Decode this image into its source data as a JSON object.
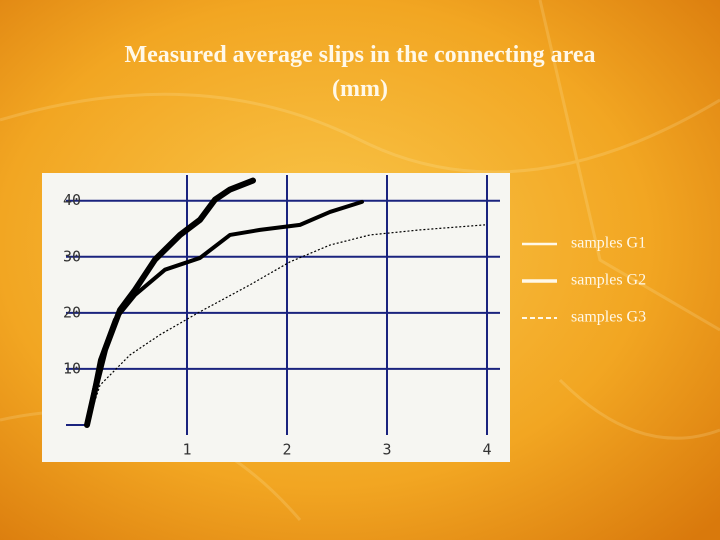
{
  "chart_data": {
    "type": "line",
    "title": "Measured average slips in the connecting area",
    "subtitle": "(mm)",
    "xlim": [
      0,
      4.13
    ],
    "ylim": [
      0,
      43.7
    ],
    "xticks": [
      1,
      2,
      3,
      4
    ],
    "yticks": [
      10,
      20,
      30,
      40
    ],
    "grid": true,
    "grid_color": "#1a237e",
    "legend": "right",
    "series": [
      {
        "name": "samples G1",
        "color": "#000000",
        "line_width": 4,
        "dashed": false,
        "x": [
          0,
          0.13,
          0.28,
          0.48,
          0.78,
          1.13,
          1.43,
          1.73,
          2.13,
          2.43,
          2.75
        ],
        "values": [
          0,
          11.6,
          18.8,
          23.2,
          27.7,
          29.8,
          33.9,
          34.8,
          35.7,
          38,
          39.8
        ]
      },
      {
        "name": "samples G2",
        "color": "#000000",
        "line_width": 6,
        "dashed": false,
        "x": [
          0,
          0.08,
          0.18,
          0.33,
          0.48,
          0.68,
          0.93,
          1.13,
          1.28,
          1.43,
          1.66
        ],
        "values": [
          0,
          6.3,
          13.4,
          20.5,
          24.1,
          29.5,
          33.9,
          36.6,
          40.2,
          42,
          43.6
        ]
      },
      {
        "name": "samples G3",
        "color": "#000000",
        "line_width": 1.2,
        "dashed": true,
        "x": [
          0,
          0.13,
          0.43,
          0.73,
          1.13,
          1.63,
          2.03,
          2.43,
          2.83,
          3.33,
          3.98
        ],
        "values": [
          0,
          7.1,
          12.5,
          16.1,
          20.2,
          25,
          29.1,
          32.1,
          33.9,
          34.8,
          35.7
        ]
      }
    ]
  }
}
